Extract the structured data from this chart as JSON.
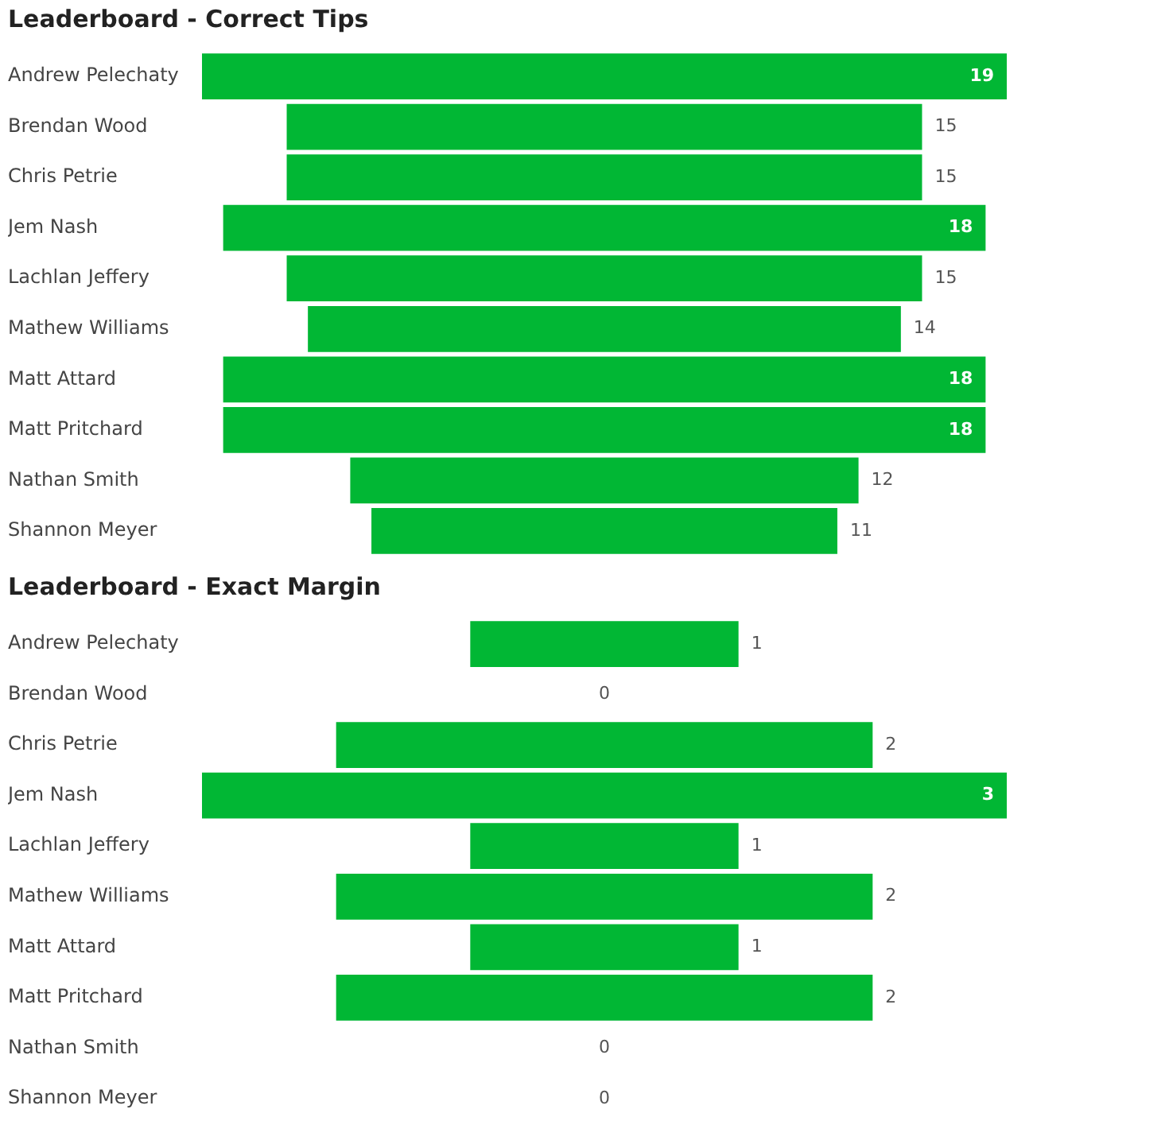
{
  "chart_data": [
    {
      "type": "other",
      "title": "Leaderboard - Correct Tips",
      "categories": [
        "Andrew Pelechaty",
        "Brendan Wood",
        "Chris Petrie",
        "Jem Nash",
        "Lachlan Jeffery",
        "Mathew Williams",
        "Matt Attard",
        "Matt Pritchard",
        "Nathan Smith",
        "Shannon Meyer"
      ],
      "values": [
        19,
        15,
        15,
        18,
        15,
        14,
        18,
        18,
        12,
        11
      ],
      "color": "#01b734",
      "data_labels": true
    },
    {
      "type": "other",
      "title": "Leaderboard - Exact Margin",
      "categories": [
        "Andrew Pelechaty",
        "Brendan Wood",
        "Chris Petrie",
        "Jem Nash",
        "Lachlan Jeffery",
        "Mathew Williams",
        "Matt Attard",
        "Matt Pritchard",
        "Nathan Smith",
        "Shannon Meyer"
      ],
      "values": [
        1,
        0,
        2,
        3,
        1,
        2,
        1,
        2,
        0,
        0
      ],
      "color": "#01b734",
      "data_labels": true
    }
  ]
}
